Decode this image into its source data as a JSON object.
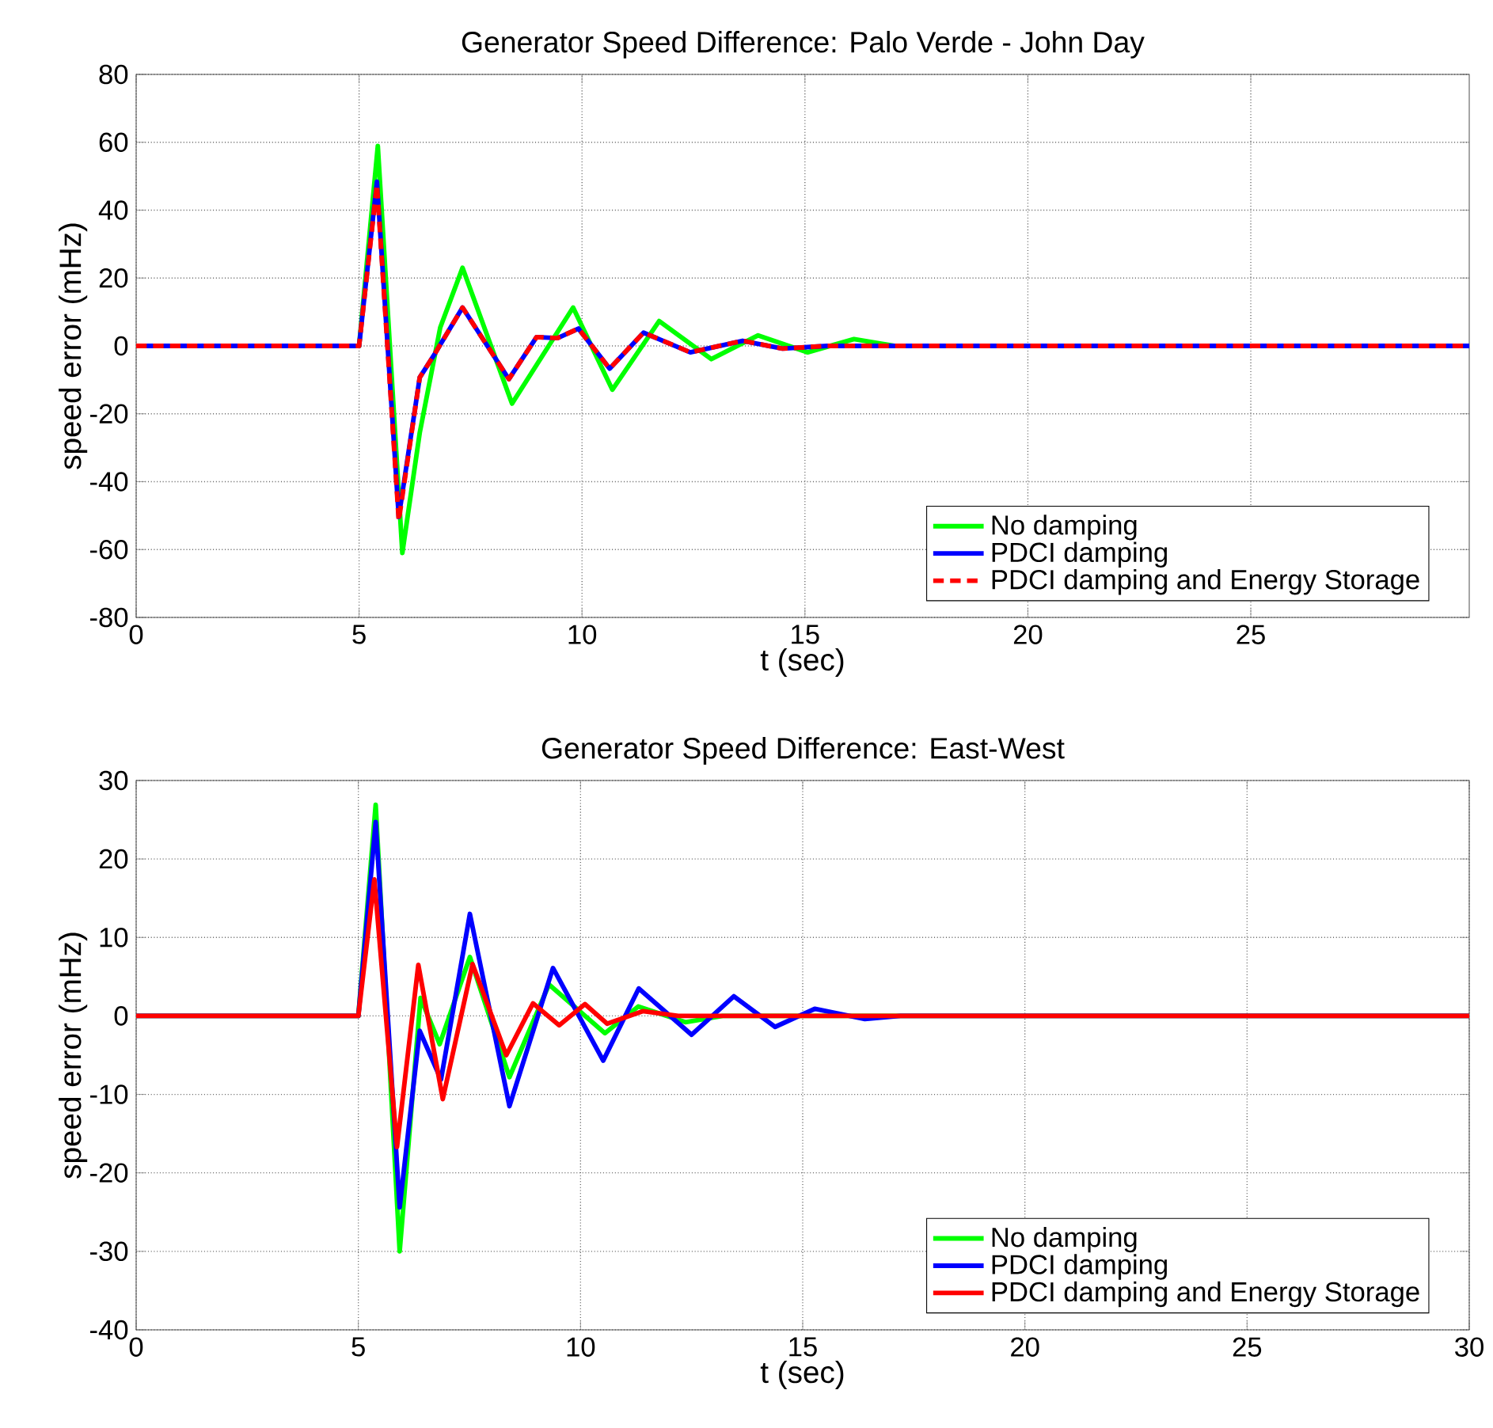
{
  "chart_data": [
    {
      "type": "line",
      "title": "Generator Speed Difference: Palo Verde - John Day",
      "xlabel": "t (sec)",
      "ylabel": "speed error (mHz)",
      "xlim": [
        0,
        29.9
      ],
      "xticks": [
        0,
        5,
        10,
        15,
        20,
        25
      ],
      "ylim": [
        -80,
        80
      ],
      "yticks": [
        -80,
        -60,
        -40,
        -20,
        0,
        20,
        40,
        60,
        80
      ],
      "grid": true,
      "legend": "bottom right",
      "marker": "none",
      "series": [
        {
          "name": "No damping",
          "color": "#00ff00",
          "line_style": "solid",
          "x": [
            0,
            5,
            5.42,
            5.97,
            6.36,
            6.82,
            7.32,
            8.43,
            9.8,
            10.68,
            11.73,
            12.9,
            13.95,
            15.06,
            16.1,
            17,
            29.9
          ],
          "values": [
            0,
            0,
            58.9,
            -61,
            -25.6,
            5.4,
            23,
            -17,
            11.3,
            -12.9,
            7.3,
            -3.9,
            3.1,
            -1.9,
            2,
            0,
            0
          ]
        },
        {
          "name": "PDCI damping",
          "color": "#0000ff",
          "line_style": "solid",
          "x": [
            0,
            5,
            5.4,
            5.89,
            6.36,
            6.7,
            7.32,
            8.36,
            8.98,
            9.45,
            9.92,
            10.62,
            11.38,
            12.43,
            13.6,
            14.5,
            15.5,
            29.9
          ],
          "values": [
            0,
            0,
            48.4,
            -50.4,
            -9.3,
            -2.3,
            11.3,
            -9.8,
            2.6,
            2.3,
            5.1,
            -6.7,
            3.9,
            -1.9,
            1.5,
            -0.8,
            0,
            0
          ]
        },
        {
          "name": "PDCI damping and Energy Storage",
          "color": "#ff0000",
          "line_style": "dashed",
          "x": [
            0,
            5,
            5.4,
            5.89,
            6.36,
            6.7,
            7.32,
            8.36,
            8.98,
            9.45,
            9.92,
            10.62,
            11.38,
            12.43,
            13.6,
            14.5,
            15.5,
            29.9
          ],
          "values": [
            0,
            0,
            47.5,
            -51.5,
            -9.3,
            -2.3,
            11.3,
            -9.8,
            2.6,
            2.3,
            5.1,
            -6.7,
            3.9,
            -1.9,
            1.5,
            -0.8,
            0,
            0
          ]
        }
      ]
    },
    {
      "type": "line",
      "title": "Generator Speed Difference: East-West",
      "xlabel": "t (sec)",
      "ylabel": "speed error (mHz)",
      "xlim": [
        0,
        30
      ],
      "xticks": [
        0,
        5,
        10,
        15,
        20,
        25,
        30
      ],
      "ylim": [
        -40,
        30
      ],
      "yticks": [
        -40,
        -30,
        -20,
        -10,
        0,
        10,
        20,
        30
      ],
      "grid": true,
      "legend": "bottom right",
      "marker": "none",
      "series": [
        {
          "name": "No damping",
          "color": "#00ff00",
          "line_style": "solid",
          "x": [
            0,
            5,
            5.39,
            5.93,
            6.4,
            6.83,
            7.51,
            8.4,
            9.29,
            10.55,
            11.3,
            12.36,
            13.2,
            30
          ],
          "values": [
            0,
            0,
            26.9,
            -30,
            2.3,
            -3.6,
            7.5,
            -7.8,
            4,
            -2.2,
            1.2,
            -0.8,
            0,
            0
          ]
        },
        {
          "name": "PDCI damping",
          "color": "#0000ff",
          "line_style": "solid",
          "x": [
            0,
            5,
            5.39,
            5.93,
            6.38,
            6.86,
            7.51,
            8.4,
            9.38,
            10.51,
            11.31,
            12.5,
            13.45,
            14.38,
            15.27,
            16.4,
            17.2,
            30
          ],
          "values": [
            0,
            0,
            24.7,
            -24.4,
            -1.9,
            -8.1,
            13,
            -11.5,
            6.1,
            -5.7,
            3.5,
            -2.4,
            2.5,
            -1.4,
            0.9,
            -0.4,
            0,
            0
          ]
        },
        {
          "name": "PDCI damping and Energy Storage",
          "color": "#ff0000",
          "line_style": "solid",
          "x": [
            0,
            5,
            5.36,
            5.87,
            6.35,
            6.9,
            7.57,
            8.33,
            8.93,
            9.52,
            10.1,
            10.6,
            11.4,
            12.2,
            30
          ],
          "values": [
            0,
            0,
            17.4,
            -16.7,
            6.5,
            -10.6,
            6.6,
            -5,
            1.6,
            -1.2,
            1.5,
            -1,
            0.6,
            0,
            0
          ]
        }
      ]
    }
  ]
}
